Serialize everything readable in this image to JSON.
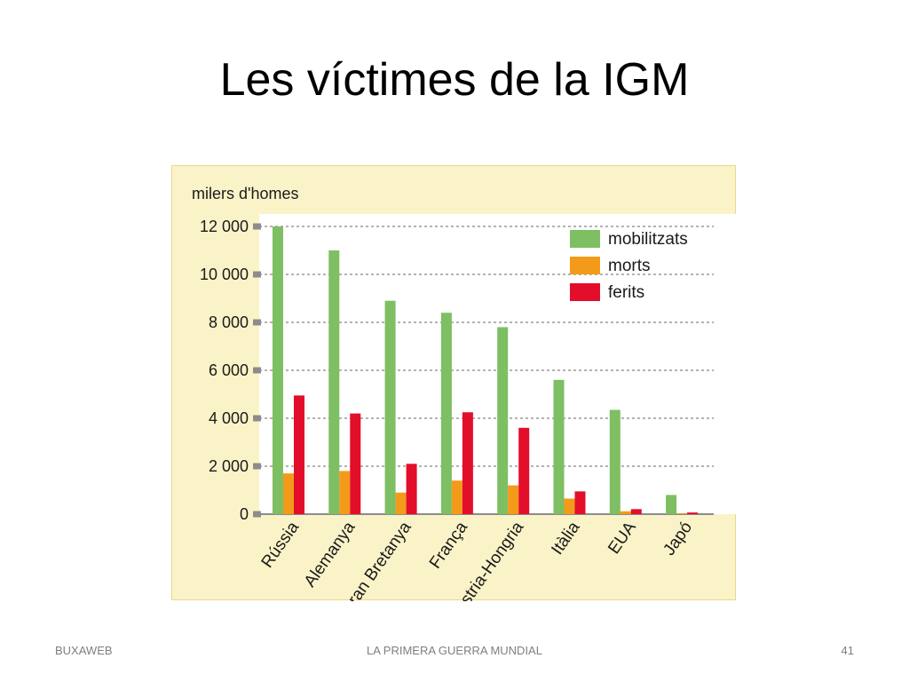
{
  "slide": {
    "title": "Les víctimes de la IGM",
    "footer_left": "BUXAWEB",
    "footer_center": "LA PRIMERA GUERRA MUNDIAL",
    "footer_right": "41"
  },
  "colors": {
    "panel_background": "#fbf3c8",
    "plot_background": "#ffffff",
    "mobilitzats": "#7dbf62",
    "morts": "#f39a1a",
    "ferits": "#e30e2a"
  },
  "chart_data": {
    "type": "bar",
    "title": "",
    "ylabel": "milers d'homes",
    "xlabel": "",
    "ylim": [
      0,
      12500
    ],
    "yticks": [
      0,
      2000,
      4000,
      6000,
      8000,
      10000,
      12000
    ],
    "ytick_labels": [
      "0",
      "2 000",
      "4 000",
      "6 000",
      "8 000",
      "10 000",
      "12 000"
    ],
    "grid": true,
    "legend_position": "top-right",
    "categories": [
      "Rússia",
      "Alemanya",
      "Gran Bretanya",
      "França",
      "Àustria-Hongria",
      "Itàlia",
      "EUA",
      "Japó"
    ],
    "series": [
      {
        "name": "mobilitzats",
        "values": [
          12000,
          11000,
          8900,
          8400,
          7800,
          5600,
          4350,
          800
        ]
      },
      {
        "name": "morts",
        "values": [
          1700,
          1800,
          900,
          1400,
          1200,
          650,
          120,
          30
        ]
      },
      {
        "name": "ferits",
        "values": [
          4950,
          4200,
          2100,
          4250,
          3600,
          950,
          210,
          70
        ]
      }
    ]
  }
}
